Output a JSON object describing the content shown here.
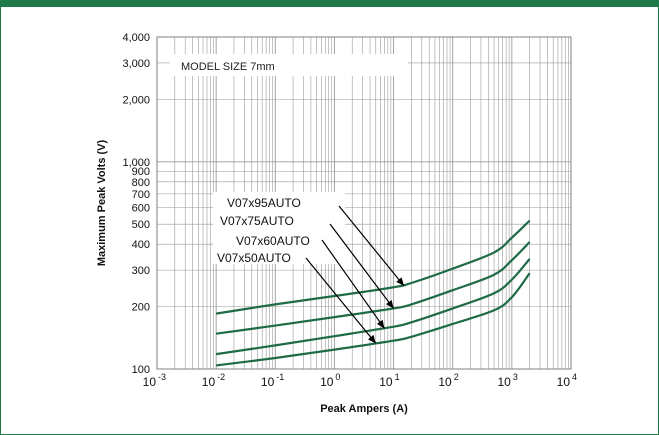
{
  "chart_data": {
    "type": "line",
    "title": "",
    "xlabel": "Peak Ampers (A)",
    "ylabel": "Maximum Peak Volts (V)",
    "x_scale": "log",
    "y_scale": "log",
    "xlim": [
      0.001,
      10000
    ],
    "ylim": [
      100,
      4000
    ],
    "grid": true,
    "x_ticks": [
      {
        "value": 0.001,
        "base": "10",
        "exp": "-3"
      },
      {
        "value": 0.01,
        "base": "10",
        "exp": "-2"
      },
      {
        "value": 0.1,
        "base": "10",
        "exp": "-1"
      },
      {
        "value": 1,
        "base": "10",
        "exp": "0"
      },
      {
        "value": 10,
        "base": "10",
        "exp": "1"
      },
      {
        "value": 100,
        "base": "10",
        "exp": "2"
      },
      {
        "value": 1000,
        "base": "10",
        "exp": "3"
      },
      {
        "value": 10000,
        "base": "10",
        "exp": "4"
      }
    ],
    "y_ticks": [
      {
        "value": 100,
        "label": "100"
      },
      {
        "value": 200,
        "label": "200"
      },
      {
        "value": 300,
        "label": "300"
      },
      {
        "value": 400,
        "label": "400"
      },
      {
        "value": 500,
        "label": "500"
      },
      {
        "value": 600,
        "label": "600"
      },
      {
        "value": 700,
        "label": "700"
      },
      {
        "value": 800,
        "label": "800"
      },
      {
        "value": 900,
        "label": "900"
      },
      {
        "value": 1000,
        "label": "1,000"
      },
      {
        "value": 2000,
        "label": "2,000"
      },
      {
        "value": 3000,
        "label": "3,000"
      },
      {
        "value": 4000,
        "label": "4,000"
      }
    ],
    "annotation": "MODEL SIZE 7mm",
    "series": [
      {
        "name": "V07x95AUTO",
        "x": [
          0.01,
          0.1,
          1,
          10,
          20,
          100,
          500,
          1000,
          2000
        ],
        "y": [
          185,
          205,
          225,
          248,
          260,
          305,
          365,
          430,
          520
        ],
        "arrow_to": {
          "x": 15,
          "y": 252
        }
      },
      {
        "name": "V07x75AUTO",
        "x": [
          0.01,
          0.1,
          1,
          10,
          20,
          100,
          500,
          1000,
          2000
        ],
        "y": [
          148,
          162,
          178,
          196,
          205,
          240,
          285,
          335,
          410
        ],
        "arrow_to": {
          "x": 10,
          "y": 196
        }
      },
      {
        "name": "V07x60AUTO",
        "x": [
          0.01,
          0.1,
          1,
          10,
          20,
          100,
          500,
          1000,
          2000
        ],
        "y": [
          118,
          130,
          144,
          160,
          168,
          196,
          232,
          270,
          340
        ],
        "arrow_to": {
          "x": 7,
          "y": 157
        }
      },
      {
        "name": "V07x50AUTO",
        "x": [
          0.01,
          0.1,
          1,
          10,
          20,
          100,
          500,
          1000,
          2000
        ],
        "y": [
          104,
          113,
          124,
          137,
          143,
          165,
          192,
          222,
          290
        ],
        "arrow_to": {
          "x": 5,
          "y": 133
        }
      }
    ],
    "colors": {
      "line": "#1e6b46",
      "grid": "#9a9a9a",
      "frame": "#1f7a4a"
    }
  }
}
